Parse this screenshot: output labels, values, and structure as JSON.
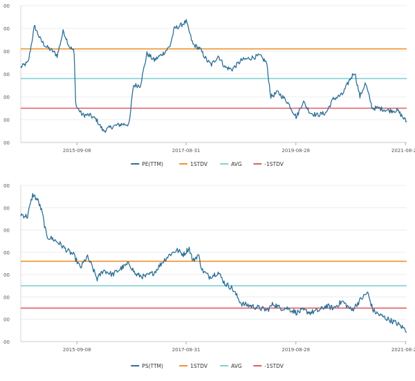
{
  "charts": {
    "pe": {
      "x_tick_labels": [
        "2015-09-08",
        "2017-08-31",
        "2019-08-28",
        "2021-08-23"
      ],
      "y_tick_labels": [
        "00",
        "00",
        "00",
        "00",
        "00",
        "00",
        "00"
      ],
      "legend": [
        {
          "label": "PE(TTM)",
          "color": "#2b6f96"
        },
        {
          "label": "1STDV",
          "color": "#f0922e"
        },
        {
          "label": "AVG",
          "color": "#7fcfd4"
        },
        {
          "label": "-1STDV",
          "color": "#e35b62"
        }
      ]
    },
    "ps": {
      "x_tick_labels": [
        "2015-09-08",
        "2017-08-31",
        "2019-08-28",
        "2021-08-23"
      ],
      "y_tick_labels": [
        "00",
        "00",
        "00",
        "00",
        "00",
        "00",
        "00",
        "00"
      ],
      "legend": [
        {
          "label": "PS(TTM)",
          "color": "#2b6f96"
        },
        {
          "label": "1STDV",
          "color": "#f0922e"
        },
        {
          "label": "AVG",
          "color": "#7fcfd4"
        },
        {
          "label": "-1STDV",
          "color": "#e35b62"
        }
      ]
    }
  },
  "chart_data": [
    {
      "type": "line",
      "title": "",
      "x_ticks": [
        "2015-09-08",
        "2017-08-31",
        "2019-08-28",
        "2021-08-23"
      ],
      "x_range": [
        "2014-09-01",
        "2021-08-31"
      ],
      "ylim": [
        0,
        6
      ],
      "y_tick_labels_shown": "00",
      "grid": true,
      "legend_placement": "bottom",
      "series": [
        {
          "name": "PE(TTM)",
          "color": "#2b6f96",
          "points": [
            [
              "2014-09-01",
              3.3
            ],
            [
              "2014-10-20",
              3.5
            ],
            [
              "2014-12-01",
              5.1
            ],
            [
              "2015-01-10",
              4.5
            ],
            [
              "2015-02-15",
              4.2
            ],
            [
              "2015-04-01",
              4.0
            ],
            [
              "2015-05-01",
              3.8
            ],
            [
              "2015-06-10",
              4.9
            ],
            [
              "2015-07-20",
              4.2
            ],
            [
              "2015-08-20",
              4.0
            ],
            [
              "2015-09-01",
              1.6
            ],
            [
              "2015-10-15",
              1.2
            ],
            [
              "2015-12-01",
              1.2
            ],
            [
              "2016-01-15",
              1.0
            ],
            [
              "2016-03-01",
              0.5
            ],
            [
              "2016-05-01",
              0.7
            ],
            [
              "2016-07-01",
              0.8
            ],
            [
              "2016-08-20",
              0.8
            ],
            [
              "2016-09-15",
              2.5
            ],
            [
              "2016-11-01",
              2.5
            ],
            [
              "2016-12-15",
              3.9
            ],
            [
              "2017-02-01",
              3.6
            ],
            [
              "2017-04-01",
              3.9
            ],
            [
              "2017-05-15",
              4.2
            ],
            [
              "2017-06-15",
              5.0
            ],
            [
              "2017-07-20",
              5.1
            ],
            [
              "2017-09-01",
              5.3
            ],
            [
              "2017-10-15",
              4.3
            ],
            [
              "2017-12-01",
              4.1
            ],
            [
              "2018-01-15",
              3.6
            ],
            [
              "2018-02-15",
              3.4
            ],
            [
              "2018-04-01",
              3.8
            ],
            [
              "2018-05-15",
              3.3
            ],
            [
              "2018-07-01",
              3.2
            ],
            [
              "2018-09-01",
              3.6
            ],
            [
              "2018-11-01",
              3.7
            ],
            [
              "2019-01-01",
              3.8
            ],
            [
              "2019-02-15",
              3.5
            ],
            [
              "2019-03-15",
              2.0
            ],
            [
              "2019-05-01",
              2.2
            ],
            [
              "2019-07-01",
              1.8
            ],
            [
              "2019-09-01",
              1.1
            ],
            [
              "2019-10-15",
              1.8
            ],
            [
              "2019-12-01",
              1.3
            ],
            [
              "2020-01-15",
              1.2
            ],
            [
              "2020-03-15",
              1.3
            ],
            [
              "2020-05-01",
              1.9
            ],
            [
              "2020-07-01",
              2.1
            ],
            [
              "2020-08-15",
              2.7
            ],
            [
              "2020-09-20",
              3.1
            ],
            [
              "2020-10-25",
              2.0
            ],
            [
              "2020-12-01",
              2.6
            ],
            [
              "2021-01-15",
              1.5
            ],
            [
              "2021-03-01",
              1.5
            ],
            [
              "2021-05-01",
              1.4
            ],
            [
              "2021-07-01",
              1.4
            ],
            [
              "2021-08-31",
              0.9
            ]
          ]
        },
        {
          "name": "1STDV",
          "color": "#f0922e",
          "values": [
            4.1
          ]
        },
        {
          "name": "AVG",
          "color": "#7fcfd4",
          "values": [
            2.8
          ]
        },
        {
          "name": "-1STDV",
          "color": "#e35b62",
          "values": [
            1.5
          ]
        }
      ]
    },
    {
      "type": "line",
      "title": "",
      "x_ticks": [
        "2015-09-08",
        "2017-08-31",
        "2019-08-28",
        "2021-08-23"
      ],
      "x_range": [
        "2014-09-01",
        "2021-08-31"
      ],
      "ylim": [
        0,
        7
      ],
      "y_tick_labels_shown": "00",
      "grid": true,
      "legend_placement": "bottom",
      "series": [
        {
          "name": "PS(TTM)",
          "color": "#2b6f96",
          "points": [
            [
              "2014-09-01",
              5.7
            ],
            [
              "2014-10-15",
              5.6
            ],
            [
              "2014-11-20",
              6.6
            ],
            [
              "2014-12-25",
              6.3
            ],
            [
              "2015-01-20",
              5.8
            ],
            [
              "2015-02-20",
              4.7
            ],
            [
              "2015-04-01",
              4.6
            ],
            [
              "2015-05-15",
              4.4
            ],
            [
              "2015-07-01",
              4.1
            ],
            [
              "2015-08-15",
              3.9
            ],
            [
              "2015-10-01",
              3.3
            ],
            [
              "2015-11-15",
              3.8
            ],
            [
              "2015-12-15",
              3.4
            ],
            [
              "2016-01-20",
              2.8
            ],
            [
              "2016-03-01",
              3.2
            ],
            [
              "2016-05-01",
              3.0
            ],
            [
              "2016-07-01",
              3.3
            ],
            [
              "2016-08-20",
              3.5
            ],
            [
              "2016-10-01",
              3.0
            ],
            [
              "2016-12-01",
              2.9
            ],
            [
              "2017-02-01",
              3.1
            ],
            [
              "2017-04-01",
              3.6
            ],
            [
              "2017-05-15",
              3.9
            ],
            [
              "2017-07-01",
              4.1
            ],
            [
              "2017-08-15",
              3.9
            ],
            [
              "2017-09-20",
              4.2
            ],
            [
              "2017-10-15",
              3.6
            ],
            [
              "2017-11-20",
              3.9
            ],
            [
              "2017-12-15",
              3.2
            ],
            [
              "2018-02-01",
              2.9
            ],
            [
              "2018-04-01",
              3.1
            ],
            [
              "2018-05-15",
              2.6
            ],
            [
              "2018-07-01",
              2.4
            ],
            [
              "2018-09-01",
              1.7
            ],
            [
              "2018-11-01",
              1.6
            ],
            [
              "2019-01-01",
              1.5
            ],
            [
              "2019-02-20",
              1.4
            ],
            [
              "2019-04-01",
              1.7
            ],
            [
              "2019-05-15",
              1.5
            ],
            [
              "2019-07-01",
              1.5
            ],
            [
              "2019-09-01",
              1.3
            ],
            [
              "2019-10-15",
              1.4
            ],
            [
              "2019-12-01",
              1.3
            ],
            [
              "2020-02-01",
              1.4
            ],
            [
              "2020-03-15",
              1.6
            ],
            [
              "2020-05-01",
              1.5
            ],
            [
              "2020-07-01",
              1.8
            ],
            [
              "2020-09-01",
              1.4
            ],
            [
              "2020-11-01",
              1.9
            ],
            [
              "2020-12-15",
              2.2
            ],
            [
              "2021-01-20",
              1.4
            ],
            [
              "2021-03-01",
              1.2
            ],
            [
              "2021-05-01",
              1.0
            ],
            [
              "2021-07-01",
              0.8
            ],
            [
              "2021-08-31",
              0.5
            ]
          ]
        },
        {
          "name": "1STDV",
          "color": "#f0922e",
          "values": [
            3.6
          ]
        },
        {
          "name": "AVG",
          "color": "#7fcfd4",
          "values": [
            2.5
          ]
        },
        {
          "name": "-1STDV",
          "color": "#e35b62",
          "values": [
            1.5
          ]
        }
      ]
    }
  ]
}
